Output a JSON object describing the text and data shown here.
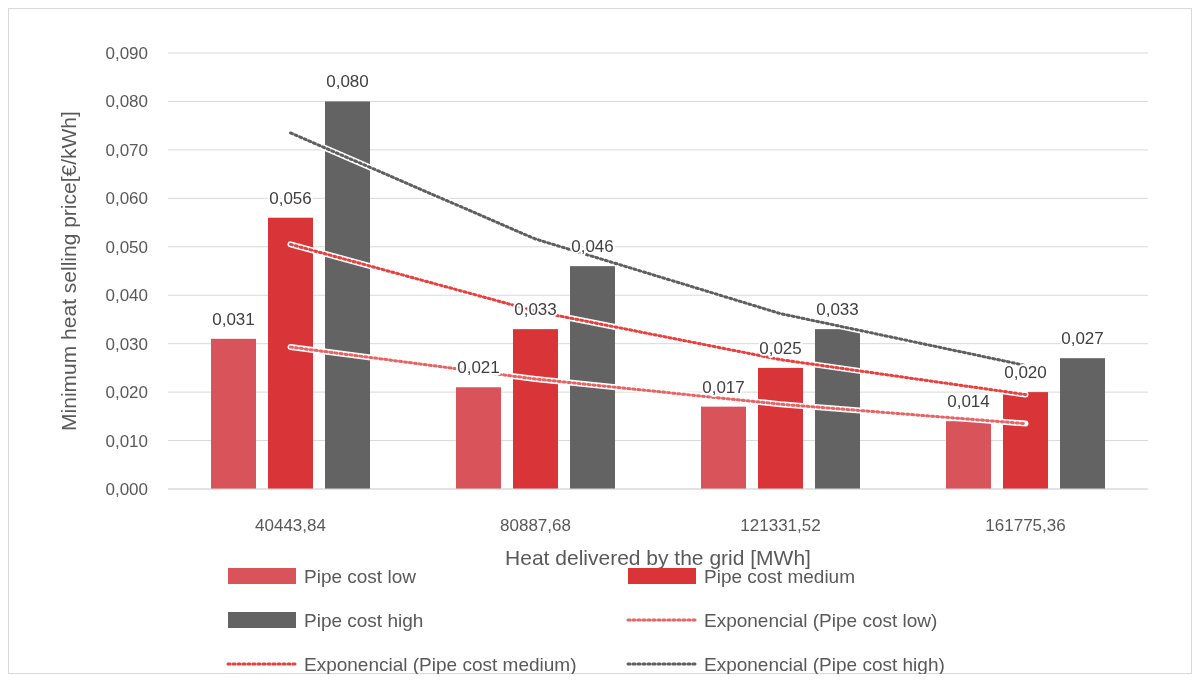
{
  "chart_data": {
    "type": "bar",
    "xlabel": "Heat delivered by the grid [MWh]",
    "ylabel": "Minimum heat selling price[€/kWh]",
    "categories": [
      "40443,84",
      "80887,68",
      "121331,52",
      "161775,36"
    ],
    "series": [
      {
        "name": "Pipe cost low",
        "color": "#d9545a",
        "values": [
          0.031,
          0.021,
          0.017,
          0.014
        ],
        "value_labels": [
          "0,031",
          "0,021",
          "0,017",
          "0,014"
        ]
      },
      {
        "name": "Pipe cost medium",
        "color": "#d93538",
        "values": [
          0.056,
          0.033,
          0.025,
          0.02
        ],
        "value_labels": [
          "0,056",
          "0,033",
          "0,025",
          "0,020"
        ]
      },
      {
        "name": "Pipe cost high",
        "color": "#636363",
        "values": [
          0.08,
          0.046,
          0.033,
          0.027
        ],
        "value_labels": [
          "0,080",
          "0,046",
          "0,033",
          "0,027"
        ]
      },
      {
        "name": "Exponencial (Pipe cost low)",
        "type": "line",
        "line_style": "dotted",
        "color": "#e86464",
        "x": [
          "40443,84",
          "80887,68",
          "121331,52",
          "161775,36"
        ],
        "values": [
          0.0293,
          0.0227,
          0.0175,
          0.0135
        ]
      },
      {
        "name": "Exponencial (Pipe cost medium)",
        "type": "line",
        "line_style": "dotted",
        "color": "#e8403f",
        "x": [
          "40443,84",
          "80887,68",
          "121331,52",
          "161775,36"
        ],
        "values": [
          0.0505,
          0.0367,
          0.0267,
          0.0195
        ]
      },
      {
        "name": "Exponencial (Pipe cost high)",
        "type": "line",
        "line_style": "dotted",
        "color": "#5f5f5f",
        "x": [
          "40443,84",
          "80887,68",
          "121331,52",
          "161775,36"
        ],
        "values": [
          0.0735,
          0.0516,
          0.0362,
          0.0255
        ]
      }
    ],
    "ylim": [
      0,
      0.09
    ],
    "yticks": [
      {
        "value": 0,
        "label": "0,000"
      },
      {
        "value": 0.01,
        "label": "0,010"
      },
      {
        "value": 0.02,
        "label": "0,020"
      },
      {
        "value": 0.03,
        "label": "0,030"
      },
      {
        "value": 0.04,
        "label": "0,040"
      },
      {
        "value": 0.05,
        "label": "0,050"
      },
      {
        "value": 0.06,
        "label": "0,060"
      },
      {
        "value": 0.07,
        "label": "0,070"
      },
      {
        "value": 0.08,
        "label": "0,080"
      },
      {
        "value": 0.09,
        "label": "0,090"
      }
    ],
    "grid": "y",
    "legend": "bottom"
  }
}
